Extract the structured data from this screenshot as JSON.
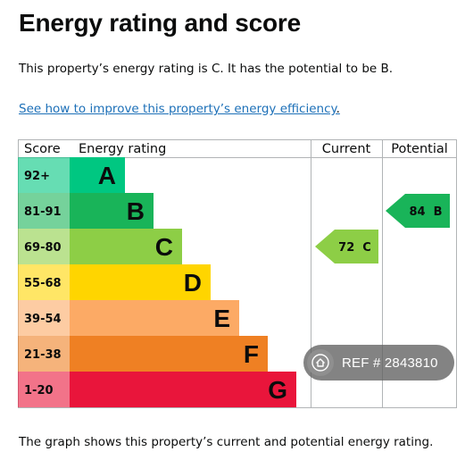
{
  "page": {
    "title": "Energy rating and score",
    "intro": "This property’s energy rating is C. It has the potential to be B.",
    "link_text": "See how to improve this property’s energy efficiency",
    "link_suffix": ".",
    "footer": "The graph shows this property’s current and potential energy rating."
  },
  "chart_data": {
    "type": "table",
    "headers": {
      "score": "Score",
      "rating": "Energy rating",
      "current": "Current",
      "potential": "Potential"
    },
    "bands": [
      {
        "range": "92+",
        "letter": "A",
        "color": "#00c781"
      },
      {
        "range": "81-91",
        "letter": "B",
        "color": "#19b459"
      },
      {
        "range": "69-80",
        "letter": "C",
        "color": "#8dce46"
      },
      {
        "range": "55-68",
        "letter": "D",
        "color": "#ffd500"
      },
      {
        "range": "39-54",
        "letter": "E",
        "color": "#fcaa65"
      },
      {
        "range": "21-38",
        "letter": "F",
        "color": "#ef8023"
      },
      {
        "range": "1-20",
        "letter": "G",
        "color": "#e9153b"
      }
    ],
    "current": {
      "score": 72,
      "letter": "C",
      "label": "72  C",
      "color": "#8dce46"
    },
    "potential": {
      "score": 84,
      "letter": "B",
      "label": "84  B",
      "color": "#19b459"
    }
  },
  "watermark": {
    "text": "REF # 2843810",
    "icon": "home-icon"
  }
}
